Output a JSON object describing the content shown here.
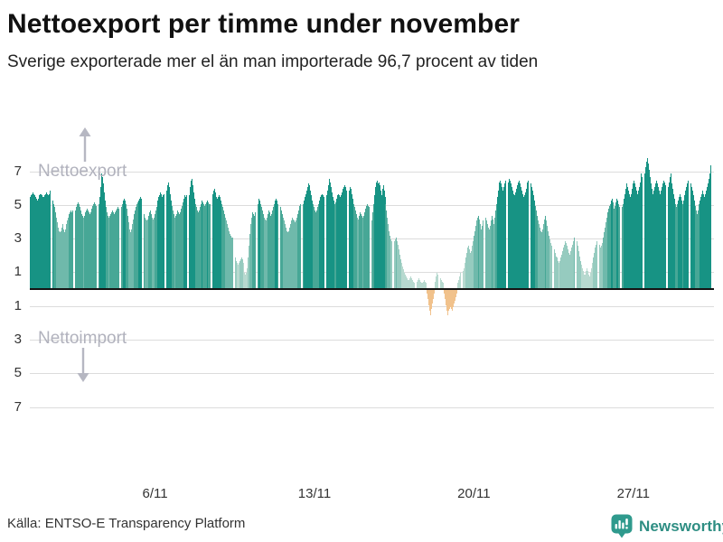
{
  "page": {
    "title": "Nettoexport per timme under november",
    "subtitle": "Sverige exporterade mer el än man importerade 96,7 procent av tiden",
    "source": "Källa: ENTSO-E Transparency Platform",
    "brand": "Newsworthy"
  },
  "chart_data": {
    "type": "bar",
    "title": "Nettoexport per timme under november",
    "subtitle": "Sverige exporterade mer el än man importerade 96,7 procent av tiden",
    "xlabel": "",
    "ylabel": "",
    "ylim": [
      -7.8,
      7.9
    ],
    "grid": true,
    "legend": "none",
    "x_tick_labels": [
      "6/11",
      "13/11",
      "20/11",
      "27/11"
    ],
    "x_tick_days": [
      6,
      13,
      20,
      27
    ],
    "y_ticks": [
      7,
      5,
      3,
      1,
      -1,
      -3,
      -5,
      -7
    ],
    "annotations": {
      "positive_label": "Nettoexport",
      "negative_label": "Nettoimport"
    },
    "colors": {
      "negative": "#f1c28c",
      "grid": "#dcdcdc",
      "zero_axis": "#141414",
      "annotation_text": "#b1b2bd",
      "arrow": "#b6b7c2",
      "brand_teal": "#2f9a8d",
      "brand_text": "#2e8e83",
      "positive_scale": [
        {
          "max": 1.6,
          "color": "#b7d9cf"
        },
        {
          "max": 3.0,
          "color": "#96cbbf"
        },
        {
          "max": 4.3,
          "color": "#6fb9ab"
        },
        {
          "max": 5.2,
          "color": "#47a796"
        },
        {
          "max": 99,
          "color": "#179384"
        }
      ]
    },
    "days_note": "30 days of November, 24 hourly net-export values (GWh) per day; negative = import",
    "days": [
      [
        5.4,
        5.5,
        5.6,
        5.7,
        5.6,
        5.5,
        5.4,
        5.3,
        5.2,
        5.3,
        5.5,
        5.6,
        5.6,
        5.5,
        5.4,
        5.3,
        5.4,
        5.5,
        5.6,
        5.7,
        5.6,
        5.5,
        5.6,
        5.8
      ],
      [
        5.2,
        5.0,
        4.8,
        4.5,
        4.2,
        3.9,
        3.6,
        3.4,
        3.3,
        3.4,
        3.6,
        3.8,
        3.5,
        3.3,
        3.5,
        3.8,
        4.0,
        4.2,
        4.4,
        4.5,
        4.6,
        4.5,
        4.4,
        4.6
      ],
      [
        4.6,
        4.8,
        5.0,
        5.1,
        5.0,
        4.8,
        4.6,
        4.4,
        4.3,
        4.2,
        4.3,
        4.5,
        4.6,
        4.7,
        4.6,
        4.5,
        4.4,
        4.5,
        4.7,
        4.9,
        5.0,
        5.1,
        5.0,
        4.9
      ],
      [
        5.0,
        5.4,
        6.0,
        6.5,
        6.8,
        6.6,
        6.2,
        5.7,
        5.2,
        4.8,
        4.5,
        4.3,
        4.2,
        4.3,
        4.4,
        4.5,
        4.6,
        4.5,
        4.4,
        4.5,
        4.6,
        4.7,
        4.8,
        4.7
      ],
      [
        4.8,
        5.0,
        5.2,
        5.3,
        5.2,
        5.0,
        4.7,
        4.3,
        3.9,
        3.5,
        3.2,
        3.3,
        3.5,
        3.8,
        4.1,
        4.4,
        4.6,
        4.8,
        5.0,
        5.1,
        5.2,
        5.3,
        5.4,
        5.3
      ],
      [
        4.4,
        4.2,
        4.1,
        4.0,
        4.1,
        4.3,
        4.5,
        4.6,
        4.4,
        4.2,
        4.1,
        4.2,
        4.4,
        4.6,
        4.8,
        5.0,
        5.2,
        5.4,
        5.5,
        5.7,
        5.6,
        5.4,
        5.5,
        5.6
      ],
      [
        5.8,
        6.1,
        6.3,
        6.0,
        5.6,
        5.2,
        4.9,
        4.6,
        4.4,
        4.2,
        4.3,
        4.4,
        4.6,
        4.5,
        4.4,
        4.5,
        4.7,
        4.9,
        5.1,
        5.3,
        5.5,
        5.4,
        5.3,
        5.5
      ],
      [
        5.5,
        6.0,
        6.4,
        6.5,
        6.1,
        5.7,
        5.3,
        5.0,
        4.8,
        4.6,
        4.5,
        4.6,
        4.8,
        5.0,
        5.2,
        5.1,
        5.0,
        4.9,
        5.0,
        5.1,
        5.2,
        5.1,
        5.0,
        5.0
      ],
      [
        5.6,
        5.8,
        5.9,
        5.7,
        5.5,
        5.4,
        5.3,
        5.4,
        5.5,
        5.4,
        5.2,
        5.0,
        4.8,
        4.6,
        4.4,
        4.2,
        4.0,
        3.8,
        3.6,
        3.4,
        3.2,
        3.1,
        3.0,
        3.0
      ],
      [
        1.8,
        1.6,
        1.5,
        1.4,
        1.5,
        1.6,
        1.7,
        1.8,
        1.7,
        1.5,
        1.2,
        0.9,
        0.8,
        0.9,
        1.2,
        1.8,
        2.5,
        3.2,
        3.8,
        4.2,
        4.5,
        4.4,
        4.3,
        4.5
      ],
      [
        5.0,
        5.3,
        5.2,
        5.0,
        4.8,
        4.6,
        4.4,
        4.2,
        4.1,
        4.0,
        4.2,
        4.4,
        4.6,
        4.5,
        4.3,
        4.2,
        4.4,
        4.6,
        4.8,
        5.0,
        5.2,
        5.3,
        5.2,
        5.0
      ],
      [
        4.8,
        4.6,
        4.4,
        4.2,
        4.0,
        3.8,
        3.6,
        3.4,
        3.3,
        3.4,
        3.6,
        3.8,
        4.0,
        4.2,
        4.1,
        4.0,
        3.9,
        4.0,
        4.2,
        4.4,
        4.6,
        4.8,
        4.9,
        5.0
      ],
      [
        5.0,
        5.2,
        5.4,
        5.6,
        5.8,
        6.0,
        6.2,
        6.1,
        5.8,
        5.5,
        5.2,
        5.0,
        4.8,
        4.6,
        4.5,
        4.6,
        4.8,
        5.0,
        5.2,
        5.4,
        5.5,
        5.6,
        5.5,
        5.4
      ],
      [
        5.5,
        5.8,
        6.1,
        6.4,
        6.5,
        6.3,
        6.0,
        5.7,
        5.4,
        5.2,
        5.0,
        5.1,
        5.3,
        5.5,
        5.6,
        5.5,
        5.4,
        5.5,
        5.7,
        5.9,
        6.0,
        6.1,
        6.0,
        5.8
      ],
      [
        5.8,
        6.0,
        5.9,
        5.6,
        5.3,
        5.0,
        4.8,
        4.6,
        4.4,
        4.2,
        4.0,
        4.1,
        4.3,
        4.5,
        4.4,
        4.3,
        4.2,
        4.3,
        4.5,
        4.7,
        4.9,
        5.0,
        4.9,
        4.8
      ],
      [
        4.0,
        4.5,
        5.0,
        5.5,
        6.0,
        6.3,
        6.4,
        6.2,
        6.3,
        6.1,
        5.8,
        5.5,
        5.9,
        6.1,
        5.8,
        5.4,
        5.0,
        4.6,
        4.2,
        3.8,
        3.4,
        3.1,
        2.9,
        2.8
      ],
      [
        2.8,
        2.9,
        3.0,
        2.8,
        2.6,
        2.3,
        2.0,
        1.7,
        1.5,
        1.3,
        1.1,
        0.9,
        0.8,
        0.7,
        0.6,
        0.5,
        0.5,
        0.6,
        0.7,
        0.6,
        0.5,
        0.4,
        0.3,
        0.3
      ],
      [
        0.4,
        0.5,
        0.6,
        0.5,
        0.4,
        0.3,
        0.3,
        0.4,
        0.5,
        0.4,
        0.3,
        -0.2,
        -0.5,
        -0.9,
        -1.2,
        -1.5,
        -1.1,
        -0.8,
        -0.5,
        -0.2,
        0.4,
        0.7,
        0.9,
        0.8
      ],
      [
        0.6,
        0.5,
        0.4,
        0.3,
        0.1,
        -0.2,
        -0.5,
        -0.9,
        -1.2,
        -1.5,
        -1.2,
        -1.1,
        -1.0,
        -1.1,
        -1.2,
        -1.0,
        -0.8,
        -0.6,
        -0.4,
        -0.2,
        0.3,
        0.5,
        0.7,
        0.9
      ],
      [
        1.0,
        1.2,
        1.5,
        1.8,
        2.1,
        2.4,
        2.5,
        2.3,
        2.1,
        2.0,
        2.2,
        2.5,
        2.8,
        3.1,
        3.4,
        3.7,
        4.0,
        4.2,
        4.3,
        4.1,
        3.8,
        3.5,
        3.7,
        4.0
      ],
      [
        4.2,
        4.0,
        3.8,
        3.6,
        3.5,
        3.7,
        4.0,
        4.3,
        4.1,
        3.8,
        4.2,
        4.6,
        5.0,
        5.4,
        5.8,
        6.1,
        6.3,
        6.4,
        6.2,
        6.0,
        5.8,
        6.0,
        6.2,
        6.4
      ],
      [
        6.3,
        6.5,
        6.4,
        6.2,
        6.0,
        5.8,
        5.6,
        5.5,
        5.7,
        5.9,
        6.1,
        6.3,
        6.4,
        6.2,
        6.0,
        5.8,
        5.6,
        5.4,
        5.5,
        5.7,
        5.9,
        6.1,
        6.3,
        6.4
      ],
      [
        6.2,
        6.0,
        5.8,
        5.5,
        5.2,
        4.9,
        4.6,
        4.3,
        4.0,
        3.8,
        3.6,
        3.4,
        3.3,
        3.5,
        3.8,
        4.1,
        4.3,
        4.0,
        3.7,
        3.4,
        3.1,
        2.9,
        2.7,
        2.5
      ],
      [
        2.3,
        2.1,
        1.9,
        1.8,
        1.7,
        1.6,
        1.5,
        1.6,
        1.8,
        2.0,
        2.2,
        2.4,
        2.6,
        2.8,
        2.7,
        2.5,
        2.3,
        2.1,
        2.0,
        2.2,
        2.4,
        2.6,
        2.8,
        3.0
      ],
      [
        2.8,
        2.5,
        2.2,
        1.9,
        1.6,
        1.4,
        1.2,
        1.0,
        0.8,
        0.7,
        0.8,
        1.0,
        1.2,
        1.0,
        0.8,
        0.7,
        0.9,
        1.2,
        1.5,
        1.8,
        2.1,
        2.4,
        2.6,
        2.8
      ],
      [
        2.6,
        2.4,
        2.5,
        2.7,
        3.0,
        3.3,
        3.6,
        3.9,
        4.2,
        4.5,
        4.7,
        4.9,
        5.0,
        5.2,
        5.3,
        5.1,
        4.9,
        4.7,
        4.9,
        5.1,
        5.3,
        5.2,
        5.0,
        4.8
      ],
      [
        4.8,
        5.0,
        5.3,
        5.6,
        5.9,
        6.2,
        6.0,
        5.8,
        5.6,
        5.4,
        5.6,
        5.9,
        6.2,
        6.4,
        6.2,
        6.0,
        5.8,
        5.6,
        5.8,
        6.0,
        6.3,
        6.5,
        6.8,
        6.6
      ],
      [
        6.8,
        7.2,
        7.5,
        7.7,
        7.4,
        7.0,
        6.6,
        6.2,
        5.9,
        5.6,
        5.8,
        6.0,
        6.2,
        6.4,
        6.2,
        6.0,
        5.8,
        5.6,
        5.8,
        6.0,
        6.2,
        6.4,
        6.3,
        6.1
      ],
      [
        6.0,
        6.3,
        6.6,
        6.8,
        6.5,
        6.2,
        5.9,
        5.6,
        5.3,
        5.0,
        4.8,
        5.0,
        5.2,
        5.4,
        5.6,
        5.4,
        5.2,
        5.0,
        5.2,
        5.5,
        5.8,
        6.0,
        6.2,
        6.4
      ],
      [
        6.2,
        6.0,
        5.8,
        5.5,
        5.2,
        4.9,
        4.6,
        4.4,
        4.6,
        4.8,
        5.0,
        5.2,
        5.4,
        5.6,
        5.8,
        5.6,
        5.4,
        5.6,
        5.8,
        6.0,
        6.2,
        6.5,
        6.8,
        7.3
      ]
    ]
  }
}
